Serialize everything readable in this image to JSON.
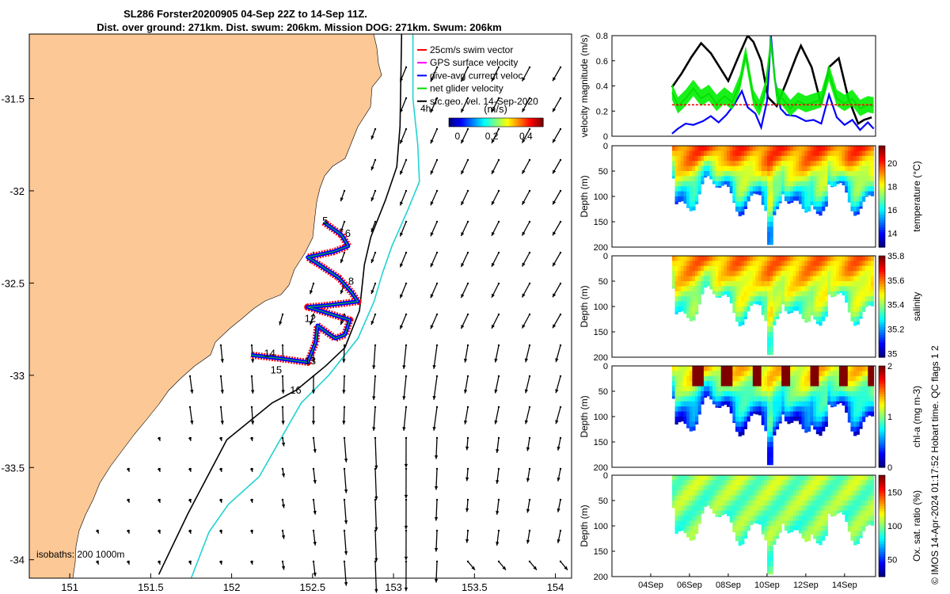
{
  "title": {
    "line1": "SL286 Forster20200905 04-Sep 22Z to 14-Sep 11Z.",
    "line2": "Dist. over ground: 271km. Dist. swum: 206km. Mission DOG: 271km. Swum: 206km"
  },
  "copyright": "© IMOS 14-Apr-2024 01:17:52 Hobart time. QC flags 1  2",
  "chart_data": [
    {
      "type": "map",
      "xlim": [
        150.75,
        154.1
      ],
      "ylim": [
        -34.1,
        -31.15
      ],
      "x_ticks": [
        "151",
        "151.5",
        "152",
        "152.5",
        "153",
        "153.5",
        "154"
      ],
      "x_tick_values": [
        151,
        151.5,
        152,
        152.5,
        153,
        153.5,
        154
      ],
      "y_ticks": [
        "-31.5",
        "-32",
        "-32.5",
        "-33",
        "-33.5",
        "-34"
      ],
      "y_tick_values": [
        -31.5,
        -32,
        -32.5,
        -33,
        -33.5,
        -34
      ],
      "legend": {
        "placement": "top-right",
        "entries": [
          {
            "label": "25cm/s swim vector",
            "color": "#ff0000"
          },
          {
            "label": "GPS surface velocity",
            "color": "#ff00ff"
          },
          {
            "label": "dive-avg current veloc.",
            "color": "#0000ff"
          },
          {
            "label": "net glider velocity",
            "color": "#00dd00"
          },
          {
            "label": "sfc.geo. vel. 14-Sep-2020",
            "color": "#000000"
          }
        ]
      },
      "annotation_4h": "4h",
      "colorbar": {
        "label": "(m/s)",
        "ticks": [
          "0",
          "0.2",
          "0.4"
        ],
        "tick_values": [
          0,
          0.2,
          0.4
        ],
        "range": [
          -0.05,
          0.5
        ]
      },
      "isobath_label": "isobaths: 200  1000m",
      "isobaths": [
        {
          "depth": 200,
          "color": "#000000",
          "points": [
            [
              151.55,
              -34.08
            ],
            [
              151.73,
              -33.75
            ],
            [
              151.97,
              -33.35
            ],
            [
              152.25,
              -33.15
            ],
            [
              152.4,
              -33.08
            ],
            [
              152.58,
              -32.95
            ],
            [
              152.7,
              -32.85
            ],
            [
              152.79,
              -32.65
            ],
            [
              152.82,
              -32.4
            ],
            [
              152.86,
              -32.25
            ],
            [
              152.95,
              -32.05
            ],
            [
              153.02,
              -31.87
            ],
            [
              153.04,
              -31.65
            ],
            [
              153.05,
              -31.15
            ]
          ]
        },
        {
          "depth": 1000,
          "color": "#22d3d3",
          "points": [
            [
              151.75,
              -34.1
            ],
            [
              151.86,
              -33.85
            ],
            [
              151.98,
              -33.7
            ],
            [
              152.17,
              -33.55
            ],
            [
              152.3,
              -33.35
            ],
            [
              152.43,
              -33.15
            ],
            [
              152.6,
              -33.0
            ],
            [
              152.78,
              -32.8
            ],
            [
              152.88,
              -32.6
            ],
            [
              152.93,
              -32.45
            ],
            [
              152.99,
              -32.3
            ],
            [
              153.09,
              -32.1
            ],
            [
              153.16,
              -31.95
            ],
            [
              153.15,
              -31.75
            ],
            [
              153.12,
              -31.5
            ],
            [
              153.12,
              -31.15
            ]
          ]
        }
      ],
      "track_labels": [
        {
          "text": "5",
          "lon": 152.56,
          "lat": -32.18
        },
        {
          "text": "6",
          "lon": 152.7,
          "lat": -32.25
        },
        {
          "text": "8",
          "lon": 152.72,
          "lat": -32.51
        },
        {
          "text": "12",
          "lon": 152.45,
          "lat": -32.71
        },
        {
          "text": "13",
          "lon": 152.45,
          "lat": -32.94
        },
        {
          "text": "14",
          "lon": 152.2,
          "lat": -32.9
        },
        {
          "text": "15",
          "lon": 152.24,
          "lat": -32.99
        },
        {
          "text": "16",
          "lon": 152.36,
          "lat": -33.1
        }
      ],
      "track": [
        [
          152.57,
          -32.17
        ],
        [
          152.68,
          -32.24
        ],
        [
          152.72,
          -32.3
        ],
        [
          152.63,
          -32.33
        ],
        [
          152.47,
          -32.36
        ],
        [
          152.54,
          -32.4
        ],
        [
          152.66,
          -32.47
        ],
        [
          152.74,
          -32.55
        ],
        [
          152.78,
          -32.6
        ],
        [
          152.6,
          -32.62
        ],
        [
          152.47,
          -32.63
        ],
        [
          152.62,
          -32.67
        ],
        [
          152.73,
          -32.7
        ],
        [
          152.7,
          -32.78
        ],
        [
          152.64,
          -32.8
        ],
        [
          152.53,
          -32.73
        ],
        [
          152.52,
          -32.82
        ],
        [
          152.47,
          -32.93
        ],
        [
          152.31,
          -32.91
        ],
        [
          152.12,
          -32.89
        ]
      ]
    },
    {
      "type": "line",
      "ylabel": "velocity magnitude (m/s)",
      "ylim": [
        0,
        0.8
      ],
      "y_ticks": [
        "0",
        "0.2",
        "0.4",
        "0.6",
        "0.8"
      ],
      "y_tick_values": [
        0,
        0.2,
        0.4,
        0.6,
        0.8
      ],
      "x_range": [
        2,
        15.6
      ],
      "series": [
        {
          "color": "#000000",
          "x": [
            5.1,
            5.6,
            6.1,
            6.6,
            7.1,
            7.55,
            8.0,
            8.6,
            9.0,
            9.3,
            9.7,
            10.05,
            10.5,
            11.0,
            11.5,
            11.75,
            12.3,
            12.8,
            13.2,
            13.7,
            14.2,
            14.7,
            15.0,
            15.4
          ],
          "y": [
            0.39,
            0.5,
            0.63,
            0.74,
            0.66,
            0.55,
            0.44,
            0.66,
            0.8,
            0.75,
            0.6,
            0.31,
            0.24,
            0.43,
            0.63,
            0.72,
            0.55,
            0.25,
            0.55,
            0.62,
            0.3,
            0.1,
            0.13,
            0.15
          ]
        },
        {
          "color": "#0000ff",
          "x": [
            5.1,
            5.4,
            5.8,
            6.2,
            6.7,
            7.1,
            7.5,
            7.9,
            8.3,
            8.7,
            9.0,
            9.4,
            9.7,
            10.0,
            10.2,
            10.4,
            10.7,
            11.0,
            11.5,
            12.0,
            12.4,
            12.8,
            13.2,
            13.6,
            14.0,
            14.4,
            14.8,
            15.2,
            15.5
          ],
          "y": [
            0.02,
            0.06,
            0.1,
            0.09,
            0.12,
            0.16,
            0.11,
            0.17,
            0.25,
            0.36,
            0.23,
            0.18,
            0.07,
            0.28,
            0.8,
            0.45,
            0.22,
            0.17,
            0.16,
            0.12,
            0.13,
            0.1,
            0.33,
            0.15,
            0.09,
            0.13,
            0.05,
            0.11,
            0.06
          ]
        },
        {
          "color": "#00dd00",
          "x": [
            5.1,
            5.4,
            5.8,
            6.2,
            6.6,
            7.0,
            7.4,
            7.8,
            8.2,
            8.6,
            8.9,
            9.3,
            9.6,
            9.9,
            10.2,
            10.5,
            10.8,
            11.2,
            11.6,
            12.0,
            12.4,
            12.8,
            13.2,
            13.6,
            14.0,
            14.4,
            14.8,
            15.2,
            15.5
          ],
          "y": [
            0.35,
            0.24,
            0.3,
            0.38,
            0.3,
            0.34,
            0.26,
            0.32,
            0.27,
            0.42,
            0.65,
            0.3,
            0.22,
            0.36,
            0.74,
            0.32,
            0.3,
            0.22,
            0.28,
            0.25,
            0.27,
            0.29,
            0.5,
            0.3,
            0.26,
            0.3,
            0.22,
            0.25,
            0.24
          ]
        },
        {
          "color": "#ff0000",
          "dashed": true,
          "x": [
            5.1,
            15.5
          ],
          "y": [
            0.25,
            0.25
          ]
        }
      ]
    },
    {
      "type": "heatmap",
      "ylabel": "Depth (m)",
      "cbar_label": "temperature (°C)",
      "cbar_ticks": [
        "14",
        "16",
        "18",
        "20"
      ],
      "cbar_tick_values": [
        14,
        16,
        18,
        20
      ],
      "cbar_range": [
        12.8,
        21.5
      ],
      "surface_value": 19.6,
      "deep_value": 14.6,
      "y_ticks": [
        "0",
        "50",
        "100",
        "150",
        "200"
      ],
      "y_tick_values": [
        0,
        50,
        100,
        150,
        200
      ],
      "ylim": [
        200,
        0
      ]
    },
    {
      "type": "heatmap",
      "ylabel": "Depth (m)",
      "cbar_label": "salinity",
      "cbar_ticks": [
        "35",
        "35.2",
        "35.4",
        "35.6",
        "35.8"
      ],
      "cbar_tick_values": [
        35,
        35.2,
        35.4,
        35.6,
        35.8
      ],
      "cbar_range": [
        34.97,
        35.8
      ],
      "surface_value": 35.58,
      "deep_value": 35.3,
      "y_ticks": [
        "0",
        "50",
        "100",
        "150",
        "200"
      ],
      "y_tick_values": [
        0,
        50,
        100,
        150,
        200
      ],
      "ylim": [
        200,
        0
      ]
    },
    {
      "type": "heatmap",
      "ylabel": "Depth (m)",
      "cbar_label": "chl-a (mg m-3)",
      "cbar_ticks": [
        "0",
        "1",
        "2"
      ],
      "cbar_tick_values": [
        0,
        1,
        2
      ],
      "cbar_range": [
        0,
        2
      ],
      "surface_value": 1.3,
      "deep_value": 0.15,
      "y_ticks": [
        "0",
        "50",
        "100",
        "150",
        "200"
      ],
      "y_tick_values": [
        0,
        50,
        100,
        150,
        200
      ],
      "ylim": [
        200,
        0
      ]
    },
    {
      "type": "heatmap",
      "ylabel": "Depth (m)",
      "cbar_label": "Ox. sat. ratio (%)",
      "cbar_ticks": [
        "50",
        "100",
        "150"
      ],
      "cbar_tick_values": [
        50,
        100,
        150
      ],
      "cbar_range": [
        25,
        175
      ],
      "surface_value": 103,
      "deep_value": 95,
      "y_ticks": [
        "0",
        "50",
        "100",
        "150",
        "200"
      ],
      "y_tick_values": [
        0,
        50,
        100,
        150,
        200
      ],
      "ylim": [
        200,
        0
      ],
      "x_ticks": [
        "04Sep",
        "06Sep",
        "08Sep",
        "10Sep",
        "12Sep",
        "14Sep"
      ],
      "x_tick_values": [
        4,
        6,
        8,
        10,
        12,
        14
      ]
    }
  ]
}
